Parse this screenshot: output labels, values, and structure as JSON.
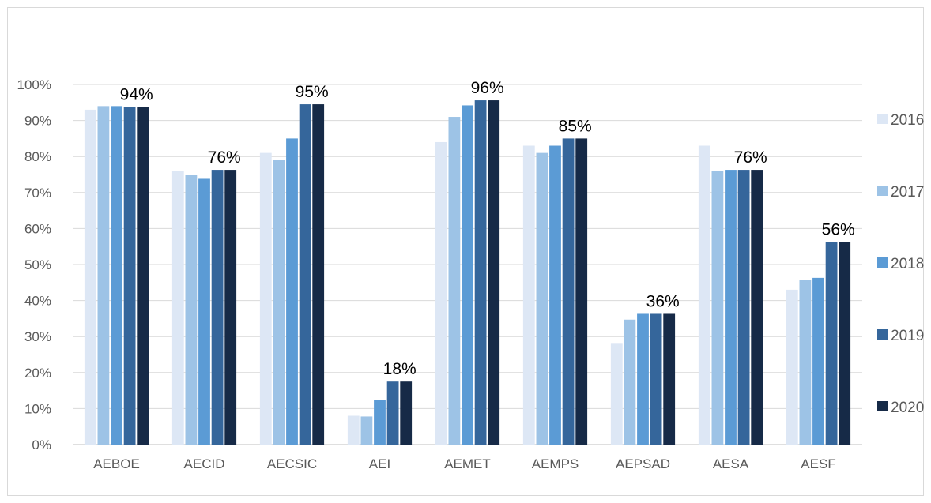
{
  "chart_data": {
    "type": "bar",
    "title": "",
    "xlabel": "",
    "ylabel": "",
    "ylim": [
      0,
      100
    ],
    "y_ticks": [
      "0%",
      "10%",
      "20%",
      "30%",
      "40%",
      "50%",
      "60%",
      "70%",
      "80%",
      "90%",
      "100%"
    ],
    "categories": [
      "AEBOE",
      "AECID",
      "AECSIC",
      "AEI",
      "AEMET",
      "AEMPS",
      "AEPSAD",
      "AESA",
      "AESF"
    ],
    "series": [
      {
        "name": "2016",
        "color": "#dde7f5",
        "values": [
          93,
          76,
          81,
          8,
          84,
          83,
          28,
          83,
          43
        ]
      },
      {
        "name": "2017",
        "color": "#9dc3e6",
        "values": [
          94,
          75,
          79,
          7.8,
          91,
          81,
          34.7,
          76,
          45.7
        ]
      },
      {
        "name": "2018",
        "color": "#5b9bd5",
        "values": [
          94,
          73.8,
          85,
          12.5,
          94.2,
          83,
          36.3,
          76.3,
          46.3
        ]
      },
      {
        "name": "2019",
        "color": "#35669b",
        "values": [
          93.7,
          76.3,
          94.5,
          17.5,
          95.6,
          85,
          36.3,
          76.3,
          56.3
        ]
      },
      {
        "name": "2020",
        "color": "#162a47",
        "values": [
          93.7,
          76.3,
          94.5,
          17.5,
          95.6,
          85,
          36.3,
          76.3,
          56.3
        ]
      }
    ],
    "data_labels": [
      "94%",
      "76%",
      "95%",
      "18%",
      "96%",
      "85%",
      "36%",
      "76%",
      "56%"
    ],
    "grid": true,
    "legend_position": "right"
  }
}
